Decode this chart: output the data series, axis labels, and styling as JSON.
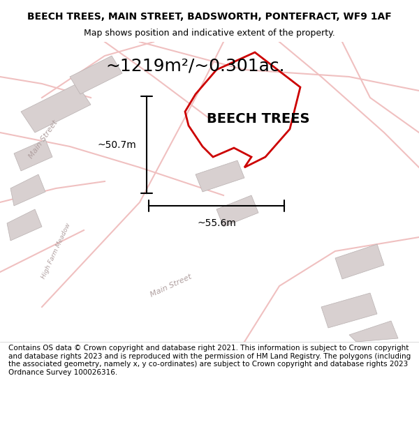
{
  "title_line1": "BEECH TREES, MAIN STREET, BADSWORTH, PONTEFRACT, WF9 1AF",
  "title_line2": "Map shows position and indicative extent of the property.",
  "area_text": "~1219m²/~0.301ac.",
  "label_text": "BEECH TREES",
  "dim_vertical": "~50.7m",
  "dim_horizontal": "~55.6m",
  "footer_text": "Contains OS data © Crown copyright and database right 2021. This information is subject to Crown copyright and database rights 2023 and is reproduced with the permission of HM Land Registry. The polygons (including the associated geometry, namely x, y co-ordinates) are subject to Crown copyright and database rights 2023 Ordnance Survey 100026316.",
  "bg_color": "#f5f0f0",
  "map_bg_color": "#f9f6f6",
  "property_color": "#cc0000",
  "road_color": "#f0c0c0",
  "building_color": "#d8d0d0",
  "text_color": "#000000",
  "dim_color": "#000000",
  "road_label_color": "#b0a0a0",
  "title_fontsize": 10,
  "subtitle_fontsize": 9,
  "area_fontsize": 18,
  "label_fontsize": 14,
  "dim_fontsize": 10,
  "footer_fontsize": 7.5
}
